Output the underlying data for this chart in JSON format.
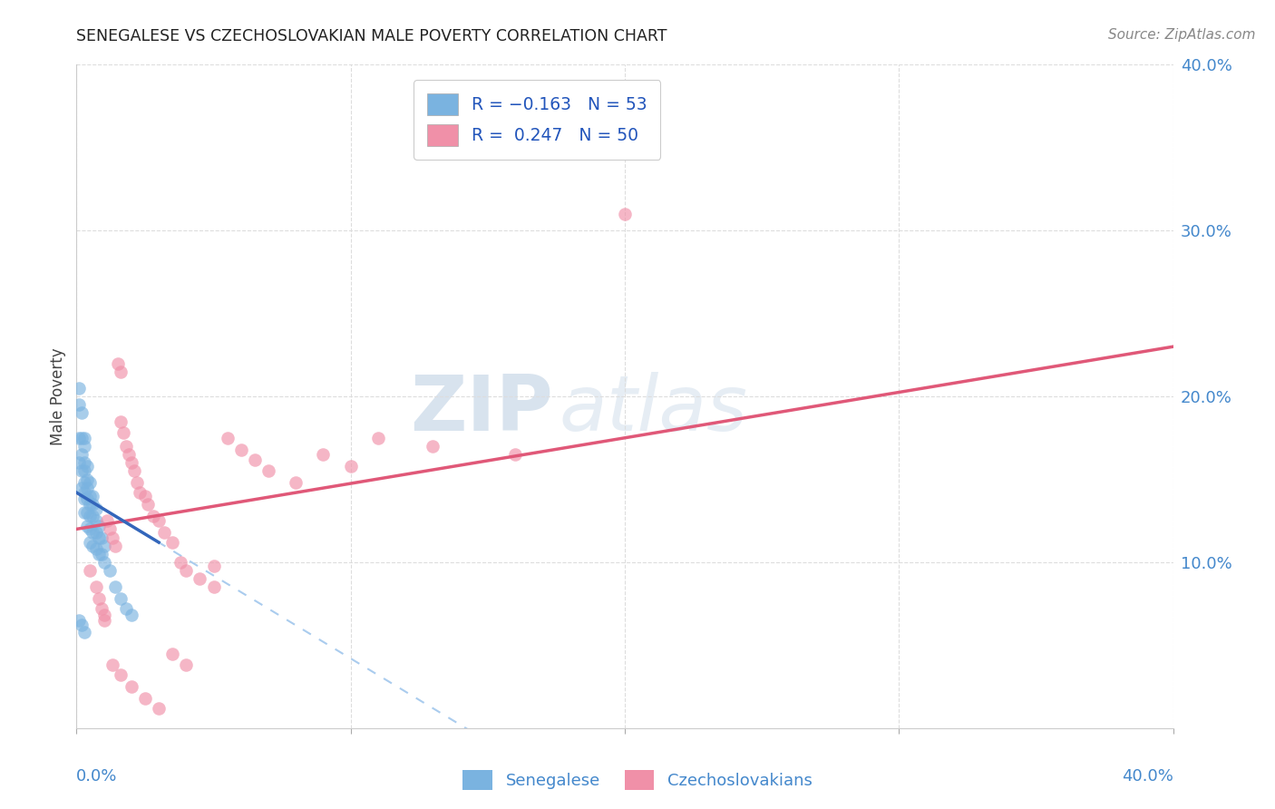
{
  "title": "SENEGALESE VS CZECHOSLOVAKIAN MALE POVERTY CORRELATION CHART",
  "source": "Source: ZipAtlas.com",
  "ylabel": "Male Poverty",
  "xlim": [
    0.0,
    0.4
  ],
  "ylim": [
    0.0,
    0.4
  ],
  "watermark_zip": "ZIP",
  "watermark_atlas": "atlas",
  "bg_color": "#ffffff",
  "dot_blue": "#7ab3e0",
  "dot_pink": "#f090a8",
  "line_blue_solid": "#3366bb",
  "line_pink": "#e05878",
  "line_blue_dashed": "#aaccee",
  "title_color": "#222222",
  "axis_label_color": "#4488cc",
  "source_color": "#888888",
  "grid_color": "#dddddd",
  "legend_label_color": "#2255bb",
  "blue_line_x0": 0.0,
  "blue_line_y0": 0.142,
  "blue_line_x1": 0.03,
  "blue_line_y1": 0.112,
  "pink_line_x0": 0.0,
  "pink_line_y0": 0.12,
  "pink_line_x1": 0.4,
  "pink_line_y1": 0.23,
  "sen_x": [
    0.001,
    0.001,
    0.001,
    0.001,
    0.002,
    0.002,
    0.002,
    0.002,
    0.002,
    0.003,
    0.003,
    0.003,
    0.003,
    0.003,
    0.003,
    0.003,
    0.003,
    0.004,
    0.004,
    0.004,
    0.004,
    0.004,
    0.004,
    0.005,
    0.005,
    0.005,
    0.005,
    0.005,
    0.005,
    0.006,
    0.006,
    0.006,
    0.006,
    0.006,
    0.007,
    0.007,
    0.007,
    0.007,
    0.008,
    0.008,
    0.008,
    0.009,
    0.009,
    0.01,
    0.01,
    0.012,
    0.014,
    0.016,
    0.018,
    0.001,
    0.002,
    0.003,
    0.02
  ],
  "sen_y": [
    0.205,
    0.195,
    0.175,
    0.16,
    0.19,
    0.175,
    0.165,
    0.155,
    0.145,
    0.175,
    0.17,
    0.16,
    0.155,
    0.148,
    0.142,
    0.138,
    0.13,
    0.158,
    0.15,
    0.145,
    0.138,
    0.13,
    0.122,
    0.148,
    0.14,
    0.135,
    0.128,
    0.12,
    0.112,
    0.14,
    0.135,
    0.128,
    0.118,
    0.11,
    0.132,
    0.125,
    0.118,
    0.108,
    0.122,
    0.115,
    0.105,
    0.115,
    0.105,
    0.11,
    0.1,
    0.095,
    0.085,
    0.078,
    0.072,
    0.065,
    0.062,
    0.058,
    0.068
  ],
  "cz_x": [
    0.005,
    0.007,
    0.008,
    0.009,
    0.01,
    0.01,
    0.011,
    0.012,
    0.013,
    0.014,
    0.015,
    0.016,
    0.016,
    0.017,
    0.018,
    0.019,
    0.02,
    0.021,
    0.022,
    0.023,
    0.025,
    0.026,
    0.028,
    0.03,
    0.032,
    0.035,
    0.038,
    0.04,
    0.045,
    0.05,
    0.055,
    0.06,
    0.065,
    0.07,
    0.08,
    0.09,
    0.1,
    0.11,
    0.13,
    0.16,
    0.013,
    0.016,
    0.02,
    0.025,
    0.03,
    0.035,
    0.04,
    0.05,
    0.185,
    0.2
  ],
  "cz_y": [
    0.095,
    0.085,
    0.078,
    0.072,
    0.068,
    0.065,
    0.125,
    0.12,
    0.115,
    0.11,
    0.22,
    0.215,
    0.185,
    0.178,
    0.17,
    0.165,
    0.16,
    0.155,
    0.148,
    0.142,
    0.14,
    0.135,
    0.128,
    0.125,
    0.118,
    0.112,
    0.1,
    0.095,
    0.09,
    0.085,
    0.175,
    0.168,
    0.162,
    0.155,
    0.148,
    0.165,
    0.158,
    0.175,
    0.17,
    0.165,
    0.038,
    0.032,
    0.025,
    0.018,
    0.012,
    0.045,
    0.038,
    0.098,
    0.38,
    0.31
  ]
}
